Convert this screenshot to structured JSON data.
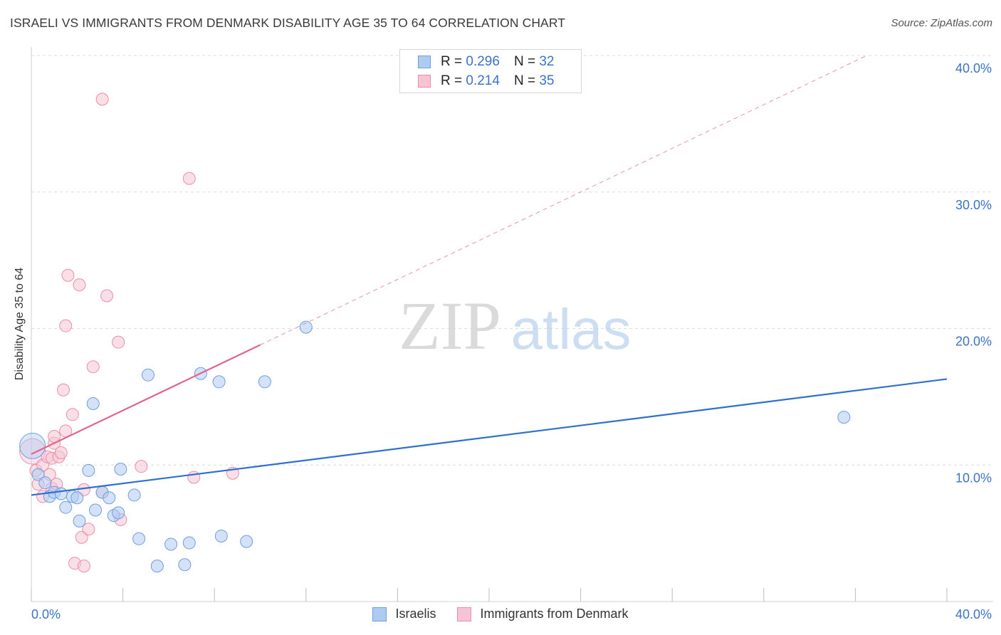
{
  "header": {
    "title": "ISRAELI VS IMMIGRANTS FROM DENMARK DISABILITY AGE 35 TO 64 CORRELATION CHART",
    "source": "Source: ZipAtlas.com"
  },
  "watermark": {
    "zip": "ZIP",
    "atlas": "atlas"
  },
  "legend_top": {
    "rows": [
      {
        "r_label": "R =",
        "r_value": "0.296",
        "n_label": "N =",
        "n_value": "32"
      },
      {
        "r_label": "R =",
        "r_value": "0.214",
        "n_label": "N =",
        "n_value": "35"
      }
    ]
  },
  "legend_bottom": {
    "items": [
      "Israelis",
      "Immigrants from Denmark"
    ]
  },
  "colors": {
    "israelis_fill": "#aecbf2",
    "israelis_stroke": "#6f9fe0",
    "israelis_line": "#2f6fcf",
    "denmark_fill": "#f8c4d4",
    "denmark_stroke": "#ec8eab",
    "denmark_line": "#e0648f",
    "grid": "#dcdcdc",
    "tick_label": "#3b73c9"
  },
  "chart_data": {
    "type": "scatter",
    "title": "ISRAELI VS IMMIGRANTS FROM DENMARK DISABILITY AGE 35 TO 64 CORRELATION CHART",
    "xlabel": "",
    "ylabel": "Disability Age 35 to 64",
    "xlim": [
      0,
      40
    ],
    "ylim": [
      0,
      40
    ],
    "y_ticks": [
      10,
      20,
      30,
      40
    ],
    "y_tick_labels": [
      "10.0%",
      "20.0%",
      "30.0%",
      "40.0%"
    ],
    "x_tick_labels": [
      "0.0%",
      "40.0%"
    ],
    "grid": true,
    "legend": "top-center",
    "series": [
      {
        "name": "Israelis",
        "R": 0.296,
        "N": 32,
        "trend": {
          "x": [
            0,
            40
          ],
          "y": [
            7.8,
            16.3
          ],
          "style": "solid"
        },
        "points": [
          {
            "x": 0.05,
            "y": 11.4,
            "big": true
          },
          {
            "x": 0.3,
            "y": 9.3
          },
          {
            "x": 0.6,
            "y": 8.7
          },
          {
            "x": 0.8,
            "y": 7.7
          },
          {
            "x": 1.0,
            "y": 8.0
          },
          {
            "x": 1.3,
            "y": 7.9
          },
          {
            "x": 1.5,
            "y": 6.9
          },
          {
            "x": 1.8,
            "y": 7.7
          },
          {
            "x": 2.0,
            "y": 7.6
          },
          {
            "x": 2.1,
            "y": 5.9
          },
          {
            "x": 2.5,
            "y": 9.6
          },
          {
            "x": 2.7,
            "y": 14.5
          },
          {
            "x": 2.8,
            "y": 6.7
          },
          {
            "x": 3.1,
            "y": 8.0
          },
          {
            "x": 3.4,
            "y": 7.6
          },
          {
            "x": 3.6,
            "y": 6.3
          },
          {
            "x": 3.8,
            "y": 6.5
          },
          {
            "x": 3.9,
            "y": 9.7
          },
          {
            "x": 4.5,
            "y": 7.8
          },
          {
            "x": 4.7,
            "y": 4.6
          },
          {
            "x": 5.1,
            "y": 16.6
          },
          {
            "x": 5.5,
            "y": 2.6
          },
          {
            "x": 6.1,
            "y": 4.2
          },
          {
            "x": 6.7,
            "y": 2.7
          },
          {
            "x": 6.9,
            "y": 4.3
          },
          {
            "x": 7.4,
            "y": 16.7
          },
          {
            "x": 8.2,
            "y": 16.1
          },
          {
            "x": 8.3,
            "y": 4.8
          },
          {
            "x": 9.4,
            "y": 4.4
          },
          {
            "x": 10.2,
            "y": 16.1
          },
          {
            "x": 12.0,
            "y": 20.1
          },
          {
            "x": 35.5,
            "y": 13.5
          }
        ]
      },
      {
        "name": "Immigrants from Denmark",
        "R": 0.214,
        "N": 35,
        "trend": {
          "x": [
            0,
            10.0
          ],
          "y": [
            10.8,
            18.8
          ],
          "x_dashed_end": 40,
          "y_dashed_end": 42.8
        },
        "points": [
          {
            "x": 0.05,
            "y": 11.0,
            "big": true
          },
          {
            "x": 0.2,
            "y": 9.6
          },
          {
            "x": 0.3,
            "y": 8.6
          },
          {
            "x": 0.5,
            "y": 10.0
          },
          {
            "x": 0.5,
            "y": 7.7
          },
          {
            "x": 0.7,
            "y": 10.6
          },
          {
            "x": 0.8,
            "y": 9.3
          },
          {
            "x": 0.9,
            "y": 10.5
          },
          {
            "x": 0.9,
            "y": 8.3
          },
          {
            "x": 1.0,
            "y": 11.6
          },
          {
            "x": 1.0,
            "y": 12.1
          },
          {
            "x": 1.1,
            "y": 8.6
          },
          {
            "x": 1.2,
            "y": 10.6
          },
          {
            "x": 1.3,
            "y": 10.9
          },
          {
            "x": 1.4,
            "y": 15.5
          },
          {
            "x": 1.5,
            "y": 20.2
          },
          {
            "x": 1.5,
            "y": 12.5
          },
          {
            "x": 1.6,
            "y": 23.9
          },
          {
            "x": 1.8,
            "y": 13.7
          },
          {
            "x": 1.9,
            "y": 2.8
          },
          {
            "x": 2.1,
            "y": 23.2
          },
          {
            "x": 2.2,
            "y": 4.7
          },
          {
            "x": 2.3,
            "y": 8.2
          },
          {
            "x": 2.3,
            "y": 2.6
          },
          {
            "x": 2.5,
            "y": 5.3
          },
          {
            "x": 2.7,
            "y": 17.2
          },
          {
            "x": 3.1,
            "y": 36.8
          },
          {
            "x": 3.1,
            "y": 8.0
          },
          {
            "x": 3.3,
            "y": 22.4
          },
          {
            "x": 3.8,
            "y": 19.0
          },
          {
            "x": 3.9,
            "y": 6.0
          },
          {
            "x": 4.8,
            "y": 9.9
          },
          {
            "x": 6.9,
            "y": 31.0
          },
          {
            "x": 7.1,
            "y": 9.1
          },
          {
            "x": 8.8,
            "y": 9.4
          }
        ]
      }
    ]
  }
}
